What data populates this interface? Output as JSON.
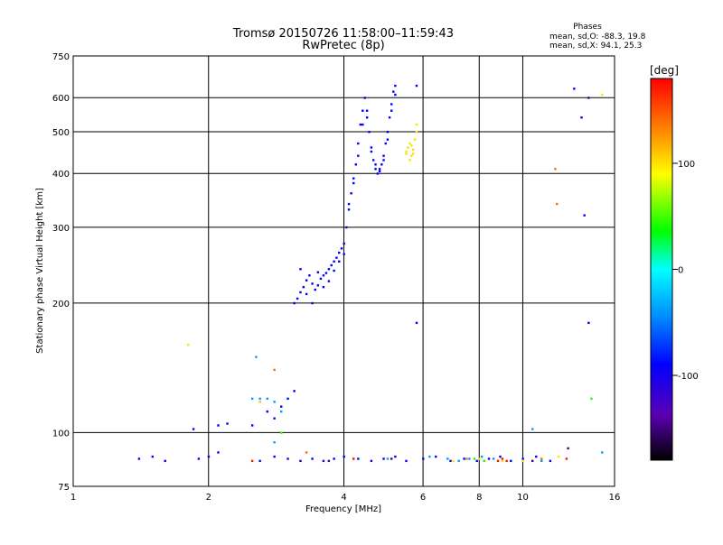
{
  "title_line1": "Tromsø 20150726 11:58:00–11:59:43",
  "title_line2": "RwPretec (8p)",
  "phases": {
    "heading": "Phases",
    "o_line": "mean, sd,O: -88.3, 19.8",
    "x_line": "mean, sd,X:  94.1, 25.3"
  },
  "chart_data": {
    "type": "scatter",
    "title": "Tromsø 20150726 11:58:00–11:59:43",
    "subtitle": "RwPretec (8p)",
    "xlabel": "Frequency [MHz]",
    "ylabel": "Stationary phase Virtual Height [km]",
    "xscale": "log",
    "yscale": "log",
    "xlim": [
      1,
      16
    ],
    "ylim": [
      75,
      750
    ],
    "grid": true,
    "xticks": [
      1,
      2,
      4,
      6,
      8,
      10,
      16
    ],
    "yticks": [
      75,
      100,
      200,
      300,
      400,
      500,
      600,
      750
    ],
    "colorbar": {
      "label": "[deg]",
      "range": [
        -180,
        180
      ],
      "ticks": [
        100,
        0,
        -100
      ]
    },
    "series": [
      {
        "color_deg": -90,
        "points": [
          [
            3.1,
            200
          ],
          [
            3.15,
            205
          ],
          [
            3.2,
            212
          ],
          [
            3.25,
            218
          ],
          [
            3.3,
            226
          ],
          [
            3.35,
            232
          ],
          [
            3.4,
            222
          ],
          [
            3.45,
            215
          ],
          [
            3.5,
            220
          ],
          [
            3.55,
            228
          ],
          [
            3.6,
            232
          ],
          [
            3.65,
            235
          ],
          [
            3.7,
            240
          ],
          [
            3.75,
            245
          ],
          [
            3.8,
            250
          ],
          [
            3.85,
            255
          ],
          [
            3.9,
            262
          ],
          [
            3.95,
            268
          ],
          [
            4.0,
            275
          ],
          [
            4.05,
            300
          ],
          [
            4.1,
            330
          ],
          [
            4.15,
            360
          ],
          [
            4.2,
            390
          ],
          [
            4.25,
            420
          ],
          [
            4.3,
            470
          ],
          [
            4.35,
            520
          ],
          [
            4.4,
            560
          ],
          [
            4.45,
            600
          ],
          [
            4.5,
            560
          ],
          [
            4.55,
            500
          ],
          [
            4.6,
            460
          ],
          [
            4.65,
            430
          ],
          [
            4.7,
            410
          ],
          [
            4.75,
            400
          ],
          [
            4.8,
            405
          ],
          [
            4.85,
            420
          ],
          [
            4.9,
            440
          ],
          [
            4.95,
            470
          ],
          [
            5.0,
            500
          ],
          [
            5.05,
            540
          ],
          [
            5.1,
            580
          ],
          [
            5.15,
            620
          ],
          [
            5.2,
            640
          ],
          [
            3.2,
            240
          ],
          [
            3.3,
            210
          ],
          [
            3.4,
            200
          ],
          [
            3.5,
            236
          ],
          [
            3.6,
            218
          ],
          [
            3.7,
            225
          ],
          [
            3.8,
            238
          ],
          [
            3.9,
            250
          ],
          [
            4.0,
            260
          ],
          [
            4.1,
            340
          ],
          [
            4.2,
            380
          ],
          [
            4.3,
            440
          ],
          [
            4.4,
            520
          ],
          [
            4.5,
            540
          ],
          [
            4.6,
            450
          ],
          [
            4.7,
            420
          ],
          [
            4.8,
            410
          ],
          [
            4.9,
            430
          ],
          [
            5.0,
            480
          ],
          [
            5.1,
            560
          ],
          [
            5.2,
            610
          ],
          [
            5.8,
            640
          ],
          [
            5.8,
            180
          ],
          [
            13.0,
            630
          ],
          [
            13.5,
            540
          ],
          [
            13.7,
            320
          ],
          [
            14.0,
            180
          ],
          [
            2.2,
            105
          ],
          [
            2.6,
            118
          ],
          [
            2.7,
            112
          ],
          [
            2.8,
            108
          ],
          [
            2.9,
            115
          ],
          [
            3.0,
            120
          ],
          [
            3.1,
            125
          ],
          [
            1.85,
            102
          ],
          [
            2.1,
            104
          ],
          [
            2.5,
            104
          ],
          [
            1.4,
            87
          ],
          [
            1.5,
            88
          ],
          [
            1.6,
            86
          ],
          [
            1.9,
            87
          ],
          [
            2.0,
            88
          ],
          [
            2.1,
            90
          ],
          [
            2.6,
            86
          ],
          [
            2.8,
            88
          ],
          [
            3.0,
            87
          ],
          [
            3.2,
            86
          ],
          [
            3.4,
            87
          ],
          [
            3.6,
            86
          ],
          [
            3.8,
            87
          ],
          [
            4.0,
            88
          ],
          [
            4.3,
            87
          ],
          [
            4.6,
            86
          ],
          [
            4.9,
            87
          ],
          [
            5.2,
            88
          ],
          [
            5.5,
            86
          ],
          [
            6.0,
            87
          ],
          [
            6.4,
            88
          ],
          [
            6.9,
            86
          ],
          [
            7.4,
            87
          ],
          [
            7.9,
            86
          ],
          [
            8.4,
            87
          ],
          [
            8.9,
            88
          ],
          [
            9.4,
            86
          ],
          [
            10.0,
            87
          ],
          [
            10.7,
            88
          ],
          [
            11.5,
            86
          ]
        ]
      },
      {
        "color_deg": -40,
        "points": [
          [
            2.5,
            120
          ],
          [
            2.6,
            120
          ],
          [
            2.7,
            120
          ],
          [
            2.8,
            118
          ],
          [
            2.9,
            112
          ],
          [
            2.55,
            150
          ],
          [
            2.8,
            95
          ],
          [
            5.0,
            87
          ],
          [
            6.2,
            88
          ],
          [
            6.8,
            87
          ],
          [
            7.2,
            86
          ],
          [
            7.6,
            87
          ],
          [
            8.1,
            88
          ],
          [
            8.6,
            87
          ],
          [
            10.5,
            102
          ],
          [
            11.0,
            86
          ],
          [
            15.0,
            90
          ]
        ]
      },
      {
        "color_deg": 100,
        "points": [
          [
            5.5,
            450
          ],
          [
            5.55,
            460
          ],
          [
            5.6,
            470
          ],
          [
            5.65,
            440
          ],
          [
            5.7,
            455
          ],
          [
            5.75,
            480
          ],
          [
            5.8,
            500
          ],
          [
            5.6,
            430
          ],
          [
            5.7,
            445
          ],
          [
            5.8,
            520
          ],
          [
            5.5,
            445
          ],
          [
            5.65,
            465
          ],
          [
            7.0,
            86
          ],
          [
            8.0,
            87
          ],
          [
            9.0,
            86
          ],
          [
            10.0,
            86
          ],
          [
            12.0,
            88
          ],
          [
            15.0,
            610
          ],
          [
            1.8,
            160
          ],
          [
            2.6,
            118
          ]
        ]
      },
      {
        "color_deg": 140,
        "points": [
          [
            11.8,
            410
          ],
          [
            11.9,
            340
          ],
          [
            2.8,
            140
          ],
          [
            7.5,
            87
          ],
          [
            11.0,
            87
          ],
          [
            3.3,
            90
          ]
        ]
      },
      {
        "color_deg": 175,
        "points": [
          [
            2.5,
            86
          ],
          [
            9.0,
            87
          ],
          [
            9.2,
            86
          ],
          [
            12.5,
            87
          ],
          [
            4.2,
            87
          ],
          [
            8.8,
            86
          ]
        ]
      },
      {
        "color_deg": 40,
        "points": [
          [
            14.2,
            120
          ],
          [
            2.9,
            100
          ],
          [
            7.8,
            87
          ],
          [
            8.2,
            86
          ]
        ]
      },
      {
        "color_deg": -150,
        "points": [
          [
            12.6,
            92
          ],
          [
            14.0,
            600
          ],
          [
            10.5,
            86
          ],
          [
            3.7,
            86
          ],
          [
            5.1,
            87
          ]
        ]
      }
    ]
  }
}
